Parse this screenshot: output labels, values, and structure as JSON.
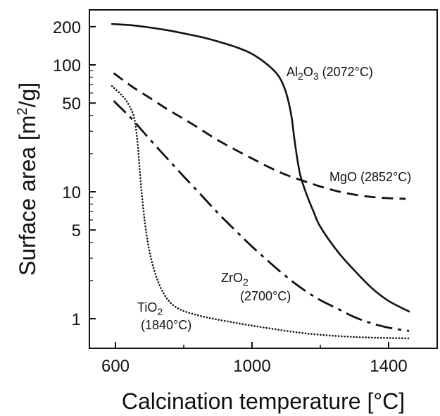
{
  "chart_data": {
    "type": "line",
    "title": "",
    "xlabel": "Calcination temperature [°C]",
    "ylabel_main": "Surface area [m",
    "ylabel_sup": "2",
    "ylabel_tail": "/g]",
    "xscale": "linear",
    "yscale": "log",
    "xlim": [
      530,
      1480
    ],
    "ylim": [
      0.68,
      400
    ],
    "x_ticks": [
      {
        "value": 600,
        "label": "600"
      },
      {
        "value": 1000,
        "label": "1000"
      },
      {
        "value": 1400,
        "label": "1400"
      }
    ],
    "x_minor_ticks": [
      800,
      1200
    ],
    "y_ticks": [
      {
        "value": 1,
        "label": "1"
      },
      {
        "value": 5,
        "label": "5"
      },
      {
        "value": 10,
        "label": "10"
      },
      {
        "value": 50,
        "label": "50"
      },
      {
        "value": 100,
        "label": "100"
      },
      {
        "value": 200,
        "label": "200"
      }
    ],
    "y_minor_ticks": [
      2,
      3,
      4,
      6,
      7,
      8,
      9,
      20,
      30,
      40,
      60,
      70,
      80,
      90,
      300
    ],
    "grid": false,
    "legend": "none",
    "series": [
      {
        "id": "al2o3",
        "style": "solid",
        "label_parts": [
          {
            "t": "Al",
            "sub": false
          },
          {
            "t": "2",
            "sub": true
          },
          {
            "t": "O",
            "sub": false
          },
          {
            "t": "3",
            "sub": true
          },
          {
            "t": " (2072°C)",
            "sub": false
          }
        ],
        "points": [
          [
            590,
            210
          ],
          [
            650,
            205
          ],
          [
            700,
            197
          ],
          [
            750,
            188
          ],
          [
            800,
            177
          ],
          [
            850,
            166
          ],
          [
            900,
            153
          ],
          [
            950,
            139
          ],
          [
            1000,
            122
          ],
          [
            1050,
            98
          ],
          [
            1080,
            80
          ],
          [
            1100,
            60
          ],
          [
            1115,
            40
          ],
          [
            1125,
            25
          ],
          [
            1140,
            14
          ],
          [
            1160,
            9.5
          ],
          [
            1180,
            7
          ],
          [
            1200,
            5.3
          ],
          [
            1250,
            3.4
          ],
          [
            1300,
            2.4
          ],
          [
            1350,
            1.75
          ],
          [
            1400,
            1.38
          ],
          [
            1460,
            1.14
          ]
        ]
      },
      {
        "id": "mgo",
        "style": "dashed",
        "label_parts": [
          {
            "t": "MgO (2852°C)",
            "sub": false
          }
        ],
        "points": [
          [
            595,
            86
          ],
          [
            650,
            67
          ],
          [
            700,
            55
          ],
          [
            750,
            45
          ],
          [
            800,
            37.5
          ],
          [
            850,
            31
          ],
          [
            900,
            25.5
          ],
          [
            950,
            21.5
          ],
          [
            1000,
            18.3
          ],
          [
            1050,
            15.6
          ],
          [
            1100,
            13.6
          ],
          [
            1150,
            12.2
          ],
          [
            1200,
            11
          ],
          [
            1250,
            10.1
          ],
          [
            1300,
            9.5
          ],
          [
            1350,
            9.1
          ],
          [
            1400,
            8.9
          ],
          [
            1450,
            8.8
          ]
        ]
      },
      {
        "id": "zro2",
        "style": "dashdot",
        "label_parts": [
          {
            "t": "ZrO",
            "sub": false
          },
          {
            "t": "2",
            "sub": true
          },
          {
            "t": "(2700°C)",
            "sub": false,
            "newline": true
          }
        ],
        "points": [
          [
            595,
            52
          ],
          [
            650,
            37
          ],
          [
            700,
            26
          ],
          [
            750,
            18.5
          ],
          [
            800,
            13.2
          ],
          [
            850,
            9.5
          ],
          [
            900,
            6.8
          ],
          [
            950,
            5
          ],
          [
            1000,
            3.7
          ],
          [
            1050,
            2.8
          ],
          [
            1100,
            2.15
          ],
          [
            1150,
            1.7
          ],
          [
            1200,
            1.4
          ],
          [
            1250,
            1.2
          ],
          [
            1300,
            1.03
          ],
          [
            1350,
            0.92
          ],
          [
            1400,
            0.85
          ],
          [
            1460,
            0.8
          ]
        ]
      },
      {
        "id": "tio2",
        "style": "dotted",
        "label_parts": [
          {
            "t": "TiO",
            "sub": false
          },
          {
            "t": "2",
            "sub": true
          },
          {
            "t": "(1840°C)",
            "sub": false,
            "newline": true
          }
        ],
        "points": [
          [
            590,
            68
          ],
          [
            620,
            57
          ],
          [
            640,
            48
          ],
          [
            655,
            38
          ],
          [
            665,
            24
          ],
          [
            675,
            11
          ],
          [
            690,
            4.8
          ],
          [
            710,
            2.6
          ],
          [
            740,
            1.6
          ],
          [
            780,
            1.22
          ],
          [
            850,
            1.05
          ],
          [
            950,
            0.93
          ],
          [
            1050,
            0.84
          ],
          [
            1150,
            0.77
          ],
          [
            1250,
            0.73
          ],
          [
            1350,
            0.71
          ],
          [
            1460,
            0.7
          ]
        ]
      }
    ]
  }
}
